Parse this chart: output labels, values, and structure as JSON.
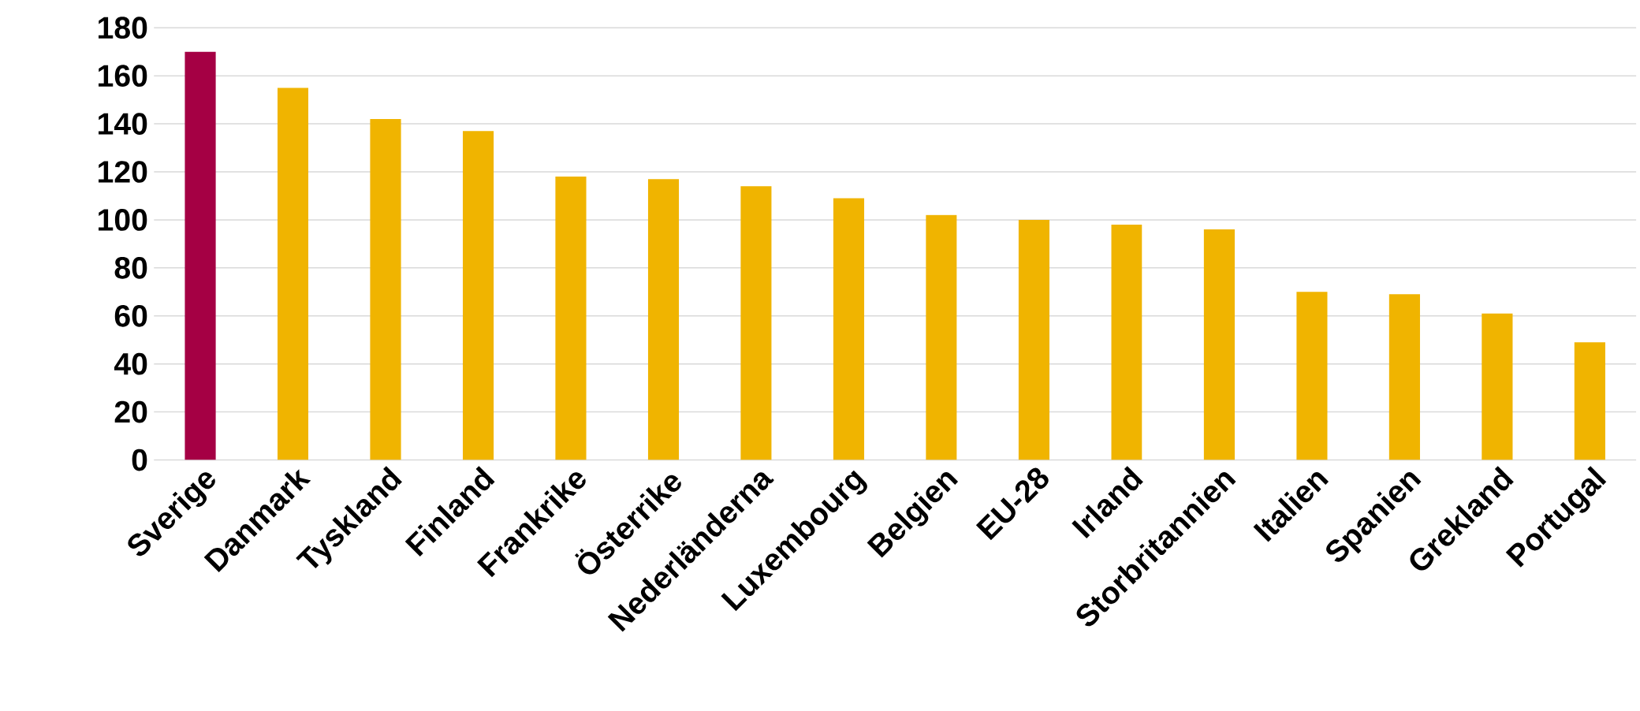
{
  "chart_data": {
    "type": "bar",
    "categories": [
      "Sverige",
      "Danmark",
      "Tyskland",
      "Finland",
      "Frankrike",
      "Österrike",
      "Nederländerna",
      "Luxembourg",
      "Belgien",
      "EU-28",
      "Irland",
      "Storbritannien",
      "Italien",
      "Spanien",
      "Grekland",
      "Portugal"
    ],
    "values": [
      170,
      155,
      142,
      137,
      118,
      117,
      114,
      109,
      102,
      100,
      98,
      96,
      70,
      69,
      61,
      49
    ],
    "colors": [
      "#a50044",
      "#f0b400",
      "#f0b400",
      "#f0b400",
      "#f0b400",
      "#f0b400",
      "#f0b400",
      "#f0b400",
      "#f0b400",
      "#f0b400",
      "#f0b400",
      "#f0b400",
      "#f0b400",
      "#f0b400",
      "#f0b400",
      "#f0b400"
    ],
    "ylim": [
      0,
      180
    ],
    "yticks": [
      0,
      20,
      40,
      60,
      80,
      100,
      120,
      140,
      160,
      180
    ],
    "grid": "y"
  }
}
